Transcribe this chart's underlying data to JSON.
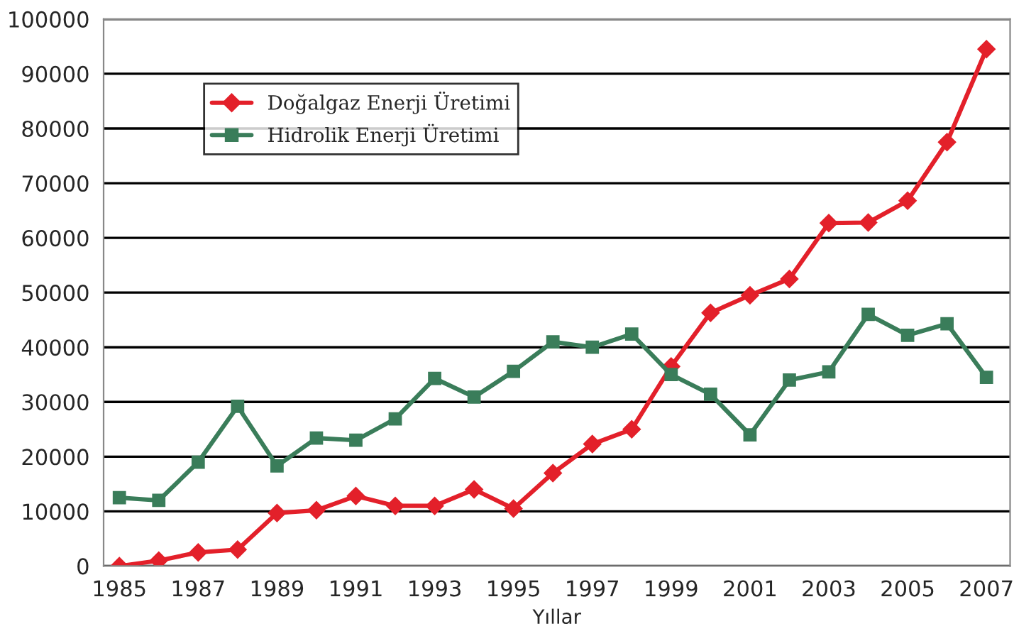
{
  "chart_data": {
    "type": "line",
    "xlabel": "Yıllar",
    "x": [
      1985,
      1986,
      1987,
      1988,
      1989,
      1990,
      1991,
      1992,
      1993,
      1994,
      1995,
      1996,
      1997,
      1998,
      1999,
      2000,
      2001,
      2002,
      2003,
      2004,
      2005,
      2006,
      2007
    ],
    "series": [
      {
        "name": "Doğalgaz Enerji Üretimi",
        "color": "#e3202a",
        "marker": "diamond",
        "values": [
          0,
          1000,
          2500,
          3000,
          9700,
          10200,
          12800,
          11000,
          11000,
          14000,
          10500,
          17000,
          22300,
          25000,
          36500,
          46300,
          49500,
          52500,
          62700,
          62800,
          66800,
          77500,
          94500
        ]
      },
      {
        "name": "Hidrolik Enerji Üretimi",
        "color": "#3a7d5a",
        "marker": "square",
        "values": [
          12500,
          12000,
          19000,
          29200,
          18300,
          23400,
          23000,
          26900,
          34300,
          30900,
          35600,
          41000,
          40000,
          42400,
          35000,
          31400,
          24000,
          34000,
          35500,
          46000,
          42200,
          44300,
          34500
        ]
      }
    ],
    "xlim": [
      1984.6,
      2007.6
    ],
    "xticks": [
      1985,
      1987,
      1989,
      1991,
      1993,
      1995,
      1997,
      1999,
      2001,
      2003,
      2005,
      2007
    ],
    "ylim": [
      0,
      100000
    ],
    "yticks": [
      0,
      10000,
      20000,
      30000,
      40000,
      50000,
      60000,
      70000,
      80000,
      90000,
      100000
    ],
    "grid": "y",
    "legend": "top left",
    "line_style": "solid"
  }
}
